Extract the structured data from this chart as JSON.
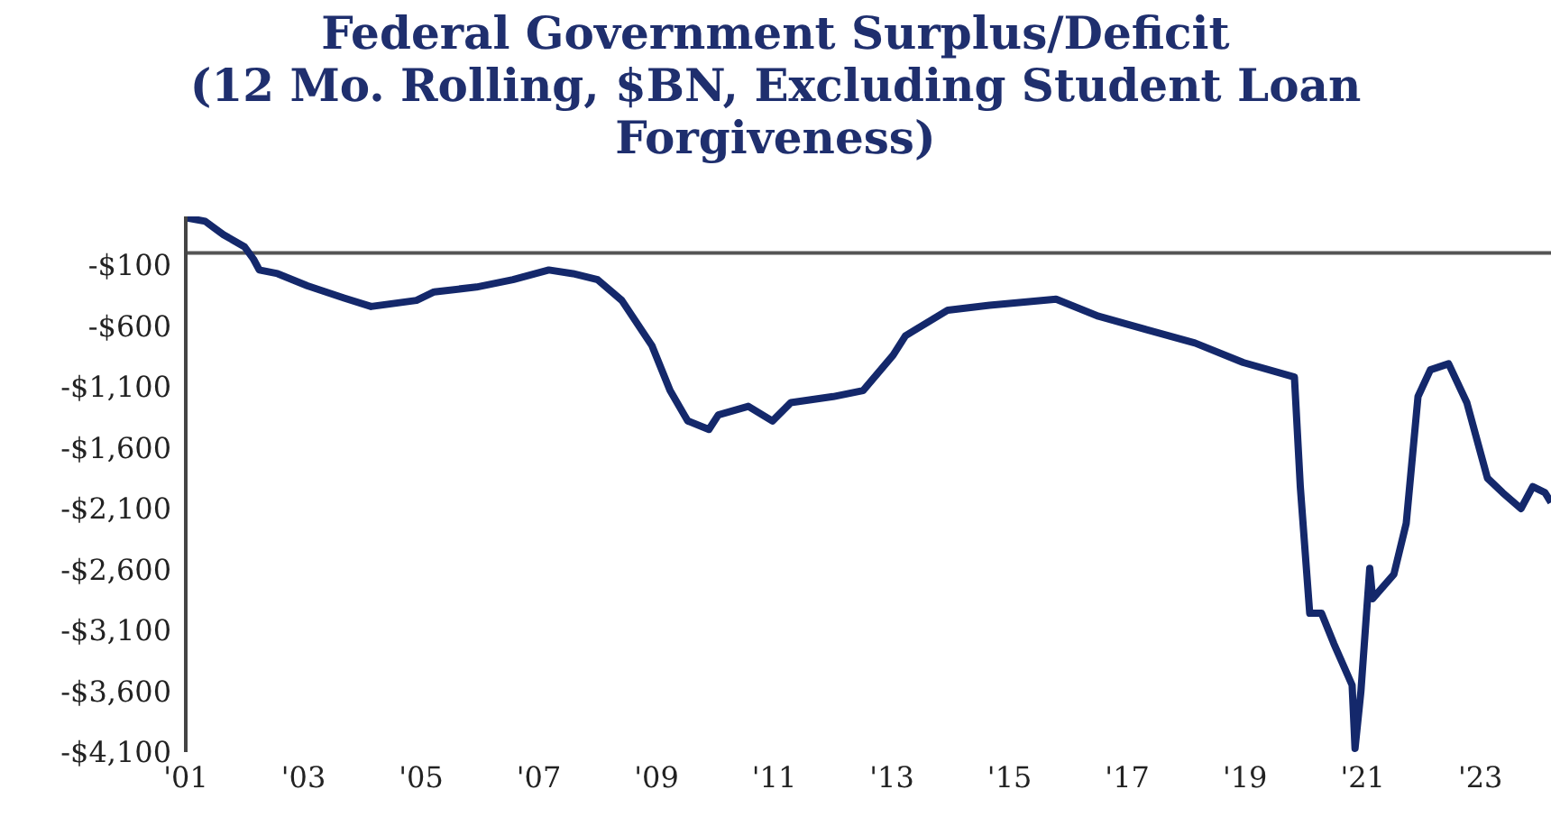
{
  "chart_data": {
    "type": "line",
    "title": "Federal Government Surplus/Deficit",
    "subtitle": "(12 Mo. Rolling, $BN, Excluding Student Loan Forgiveness)",
    "x": [
      2001.0,
      2001.33,
      2001.64,
      2002.0,
      2002.15,
      2002.25,
      2002.56,
      2003.07,
      2003.69,
      2004.15,
      2004.92,
      2005.22,
      2005.94,
      2006.56,
      2007.17,
      2007.58,
      2008.0,
      2008.41,
      2008.92,
      2009.23,
      2009.53,
      2009.89,
      2010.05,
      2010.56,
      2010.97,
      2011.28,
      2012.0,
      2012.51,
      2013.02,
      2013.23,
      2013.95,
      2014.66,
      2015.79,
      2016.51,
      2017.33,
      2018.15,
      2018.97,
      2019.84,
      2019.94,
      2020.1,
      2020.3,
      2020.51,
      2020.82,
      2020.87,
      2020.97,
      2021.12,
      2021.17,
      2021.53,
      2021.74,
      2021.94,
      2022.15,
      2022.46,
      2022.77,
      2023.12,
      2023.38,
      2023.69,
      2023.89,
      2024.1,
      2024.2
    ],
    "series": [
      {
        "color": "#14286b",
        "values": [
          290,
          260,
          150,
          50,
          -50,
          -140,
          -170,
          -270,
          -370,
          -440,
          -390,
          -320,
          -280,
          -220,
          -140,
          -170,
          -220,
          -390,
          -760,
          -1130,
          -1380,
          -1450,
          -1330,
          -1260,
          -1380,
          -1230,
          -1180,
          -1130,
          -840,
          -680,
          -470,
          -430,
          -380,
          -520,
          -630,
          -740,
          -900,
          -1020,
          -1920,
          -2960,
          -2960,
          -3210,
          -3550,
          -4070,
          -3600,
          -2590,
          -2840,
          -2640,
          -2220,
          -1180,
          -960,
          -910,
          -1230,
          -1850,
          -1970,
          -2100,
          -1920,
          -1970,
          -2050
        ]
      }
    ],
    "xlim": [
      2001,
      2024.2
    ],
    "xticks": [
      {
        "value": 2001,
        "label": "'01"
      },
      {
        "value": 2003,
        "label": "'03"
      },
      {
        "value": 2005,
        "label": "'05"
      },
      {
        "value": 2007,
        "label": "'07"
      },
      {
        "value": 2009,
        "label": "'09"
      },
      {
        "value": 2011,
        "label": "'11"
      },
      {
        "value": 2013,
        "label": "'13"
      },
      {
        "value": 2015,
        "label": "'15"
      },
      {
        "value": 2017,
        "label": "'17"
      },
      {
        "value": 2019,
        "label": "'19"
      },
      {
        "value": 2021,
        "label": "'21"
      },
      {
        "value": 2023,
        "label": "'23"
      }
    ],
    "ylim": [
      -4100,
      300
    ],
    "yticks": [
      {
        "value": -100,
        "label": "-$100"
      },
      {
        "value": -600,
        "label": "-$600"
      },
      {
        "value": -1100,
        "label": "-$1,100"
      },
      {
        "value": -1600,
        "label": "-$1,600"
      },
      {
        "value": -2100,
        "label": "-$2,100"
      },
      {
        "value": -2600,
        "label": "-$2,600"
      },
      {
        "value": -3100,
        "label": "-$3,100"
      },
      {
        "value": -3600,
        "label": "-$3,600"
      },
      {
        "value": -4100,
        "label": "-$4,100"
      }
    ],
    "ref_lines": [
      {
        "axis": "y",
        "value": 0,
        "color": "#555555"
      }
    ],
    "marker": "none",
    "line_style": "solid"
  }
}
